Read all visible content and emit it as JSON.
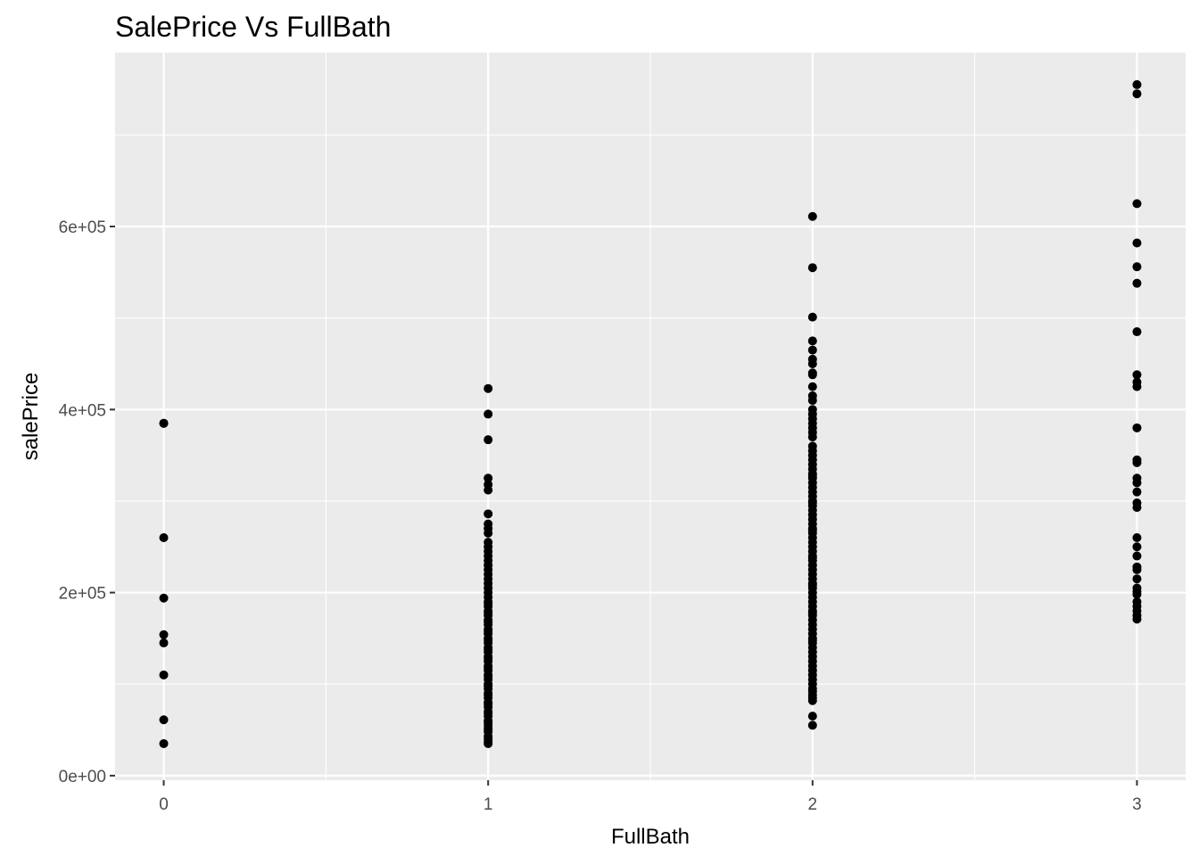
{
  "chart_data": {
    "type": "scatter",
    "title": "SalePrice Vs FullBath",
    "xlabel": "FullBath",
    "ylabel": "salePrice",
    "xlim": [
      -0.15,
      3.15
    ],
    "ylim": [
      -5000,
      790000
    ],
    "x_ticks": [
      0,
      1,
      2,
      3
    ],
    "x_tick_labels": [
      "0",
      "1",
      "2",
      "3"
    ],
    "y_ticks": [
      0,
      200000,
      400000,
      600000
    ],
    "y_tick_labels": [
      "0e+00",
      "2e+05",
      "4e+05",
      "6e+05"
    ],
    "grid": true,
    "legend": "none",
    "colors": {
      "panel": "#ebebeb",
      "grid": "#ffffff",
      "point": "#000000"
    },
    "series": [
      {
        "x": [
          0,
          0,
          0,
          0,
          0,
          0,
          0,
          0,
          0
        ],
        "y": [
          385000,
          260000,
          194000,
          154000,
          145000,
          110000,
          61000,
          35000,
          385000
        ]
      },
      {
        "x": [
          1,
          1,
          1,
          1,
          1,
          1,
          1,
          1,
          1,
          1,
          1,
          1,
          1,
          1,
          1,
          1,
          1,
          1,
          1,
          1,
          1,
          1,
          1,
          1,
          1,
          1,
          1,
          1,
          1,
          1,
          1,
          1,
          1,
          1,
          1,
          1,
          1,
          1,
          1,
          1,
          1,
          1,
          1,
          1,
          1,
          1,
          1,
          1,
          1,
          1,
          1,
          1,
          1,
          1,
          1,
          1,
          1,
          1,
          1,
          1,
          1,
          1,
          1,
          1,
          1,
          1,
          1,
          1,
          1,
          1,
          1,
          1
        ],
        "y": [
          423000,
          395000,
          367000,
          325000,
          318000,
          312000,
          286000,
          275000,
          270000,
          265000,
          255000,
          250000,
          245000,
          240000,
          235000,
          230000,
          225000,
          220000,
          215000,
          210000,
          205000,
          200000,
          195000,
          190000,
          185000,
          180000,
          175000,
          170000,
          165000,
          160000,
          155000,
          150000,
          145000,
          140000,
          135000,
          130000,
          125000,
          120000,
          115000,
          110000,
          105000,
          100000,
          95000,
          90000,
          85000,
          80000,
          75000,
          70000,
          65000,
          60000,
          55000,
          52000,
          50000,
          40000,
          37000,
          35000,
          188000,
          178000,
          168000,
          158000,
          148000,
          138000,
          128000,
          118000,
          108000,
          98000,
          88000,
          78000,
          68000,
          58000,
          48000,
          43000
        ]
      },
      {
        "x": [
          2,
          2,
          2,
          2,
          2,
          2,
          2,
          2,
          2,
          2,
          2,
          2,
          2,
          2,
          2,
          2,
          2,
          2,
          2,
          2,
          2,
          2,
          2,
          2,
          2,
          2,
          2,
          2,
          2,
          2,
          2,
          2,
          2,
          2,
          2,
          2,
          2,
          2,
          2,
          2,
          2,
          2,
          2,
          2,
          2,
          2,
          2,
          2,
          2,
          2,
          2,
          2,
          2,
          2,
          2,
          2,
          2,
          2,
          2,
          2,
          2,
          2,
          2,
          2,
          2,
          2,
          2,
          2,
          2,
          2,
          2,
          2,
          2,
          2,
          2,
          2,
          2,
          2,
          2,
          2,
          2,
          2,
          2,
          2,
          2,
          2
        ],
        "y": [
          611000,
          555000,
          501000,
          475000,
          465000,
          455000,
          450000,
          440000,
          438000,
          425000,
          415000,
          410000,
          400000,
          395000,
          390000,
          385000,
          380000,
          375000,
          370000,
          360000,
          355000,
          350000,
          345000,
          340000,
          335000,
          330000,
          325000,
          320000,
          315000,
          310000,
          305000,
          300000,
          295000,
          290000,
          285000,
          280000,
          275000,
          270000,
          265000,
          260000,
          255000,
          250000,
          245000,
          240000,
          235000,
          230000,
          225000,
          220000,
          215000,
          210000,
          205000,
          200000,
          195000,
          190000,
          185000,
          180000,
          175000,
          170000,
          165000,
          160000,
          155000,
          150000,
          145000,
          140000,
          135000,
          130000,
          125000,
          120000,
          115000,
          110000,
          105000,
          100000,
          95000,
          92000,
          88000,
          85000,
          82000,
          65000,
          55000,
          328000,
          298000,
          268000,
          238000,
          208000,
          178000,
          148000
        ]
      },
      {
        "x": [
          3,
          3,
          3,
          3,
          3,
          3,
          3,
          3,
          3,
          3,
          3,
          3,
          3,
          3,
          3,
          3,
          3,
          3,
          3,
          3,
          3,
          3,
          3,
          3,
          3,
          3,
          3,
          3,
          3,
          3,
          3,
          3
        ],
        "y": [
          755000,
          745000,
          625000,
          582000,
          556000,
          538000,
          485000,
          438000,
          430000,
          425000,
          380000,
          345000,
          342000,
          325000,
          320000,
          310000,
          298000,
          293000,
          250000,
          240000,
          228000,
          225000,
          201000,
          198000,
          190000,
          185000,
          180000,
          175000,
          171000,
          260000,
          215000,
          205000
        ]
      }
    ]
  }
}
